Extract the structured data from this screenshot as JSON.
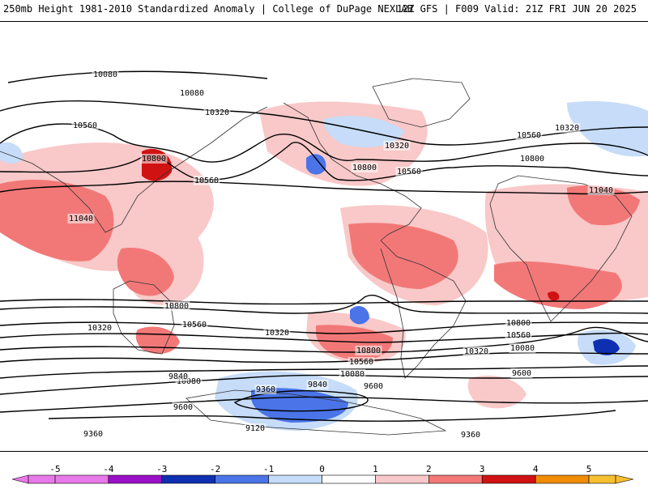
{
  "header": {
    "left_title": "250mb Height 1981-2010 Standardized Anomaly | College of DuPage NEXLAB",
    "right_title": "12Z GFS | F009 Valid: 21Z FRI JUN 20 2025"
  },
  "colors": {
    "neg5": "#e879e8",
    "neg4": "#9a10c6",
    "neg3": "#0e2fb0",
    "neg2": "#4a74e8",
    "neg1": "#c6dcf8",
    "zero": "#ffffff",
    "pos1": "#f9c8c8",
    "pos2": "#f27878",
    "pos3": "#d11212",
    "pos4": "#f08c00",
    "pos5": "#f6c030"
  },
  "colorbar": {
    "ticks": [
      "-5",
      "-4",
      "-3",
      "-2",
      "-1",
      "0",
      "1",
      "2",
      "3",
      "4",
      "5"
    ]
  },
  "contour_labels": [
    "10080",
    "10080",
    "10320",
    "10560",
    "10800",
    "11040",
    "10560",
    "10320",
    "10800",
    "10560",
    "10560",
    "10320",
    "10800",
    "11040",
    "10800",
    "10320",
    "10560",
    "10320",
    "10800",
    "10560",
    "10080",
    "10800",
    "10560",
    "10320",
    "10080",
    "10080",
    "9840",
    "9600",
    "9840",
    "9600",
    "9360",
    "9120",
    "9600",
    "9360",
    "9360"
  ]
}
